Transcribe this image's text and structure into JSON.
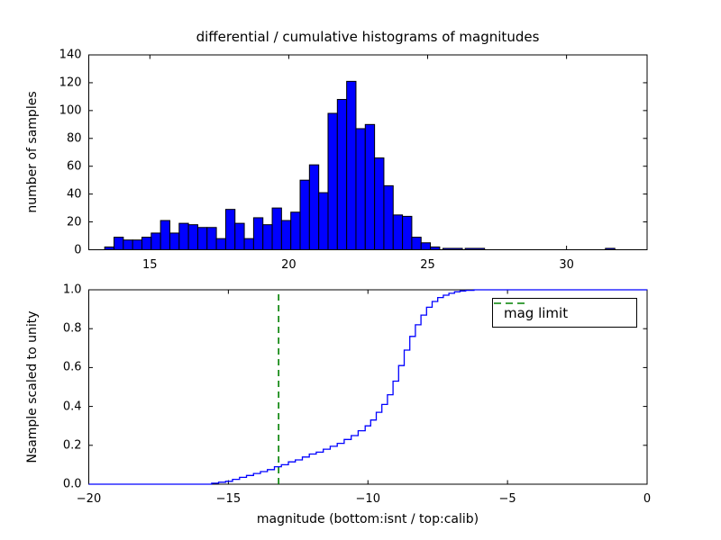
{
  "figure": {
    "background": "#ffffff",
    "title": "differential / cumulative histograms of magnitudes"
  },
  "chart_data": [
    {
      "type": "bar",
      "subtype": "differential-histogram",
      "title": "differential / cumulative histograms of magnitudes",
      "xlabel": "",
      "ylabel": "number of samples",
      "xlim": [
        12.8,
        32.9
      ],
      "ylim": [
        0,
        140
      ],
      "xticks": [
        15,
        20,
        25,
        30
      ],
      "xticklabels": [
        "15",
        "20",
        "25",
        "30"
      ],
      "yticks": [
        0,
        20,
        40,
        60,
        80,
        100,
        120,
        140
      ],
      "yticklabels": [
        "0",
        "20",
        "40",
        "60",
        "80",
        "100",
        "120",
        "140"
      ],
      "grid": false,
      "bar_color": "#0000ff",
      "bar_edge_color": "#000000",
      "bins": {
        "start": 13.374,
        "width": 0.335,
        "counts": [
          2,
          9,
          7,
          7,
          9,
          12,
          21,
          12,
          19,
          18,
          16,
          16,
          8,
          29,
          19,
          8,
          23,
          18,
          30,
          21,
          27,
          50,
          61,
          41,
          98,
          108,
          121,
          87,
          90,
          66,
          46,
          25,
          24,
          9,
          5,
          2
        ]
      },
      "extra_bars": [
        {
          "x0": 25.55,
          "x1": 26.25,
          "count": 1
        },
        {
          "x0": 26.35,
          "x1": 27.05,
          "count": 1
        },
        {
          "x0": 31.4,
          "x1": 31.74,
          "count": 1
        }
      ]
    },
    {
      "type": "line",
      "subtype": "cumulative-step-histogram",
      "xlabel": "magnitude (bottom:isnt / top:calib)",
      "ylabel": "Nsample scaled to unity",
      "xlim": [
        -20,
        0
      ],
      "ylim": [
        0.0,
        1.0
      ],
      "xticks": [
        -20,
        -15,
        -10,
        -5,
        0
      ],
      "xticklabels": [
        "−20",
        "−15",
        "−10",
        "−5",
        "0"
      ],
      "yticks": [
        0.0,
        0.2,
        0.4,
        0.6,
        0.8,
        1.0
      ],
      "yticklabels": [
        "0.0",
        "0.2",
        "0.4",
        "0.6",
        "0.8",
        "1.0"
      ],
      "grid": false,
      "line_color": "#0000ff",
      "steps": [
        [
          -20,
          0
        ],
        [
          -15.6,
          0.005
        ],
        [
          -15.35,
          0.01
        ],
        [
          -15.1,
          0.015
        ],
        [
          -14.85,
          0.025
        ],
        [
          -14.6,
          0.035
        ],
        [
          -14.35,
          0.045
        ],
        [
          -14.1,
          0.055
        ],
        [
          -13.85,
          0.065
        ],
        [
          -13.6,
          0.075
        ],
        [
          -13.35,
          0.09
        ],
        [
          -13.1,
          0.1
        ],
        [
          -12.85,
          0.115
        ],
        [
          -12.6,
          0.125
        ],
        [
          -12.35,
          0.14
        ],
        [
          -12.1,
          0.155
        ],
        [
          -11.85,
          0.165
        ],
        [
          -11.6,
          0.18
        ],
        [
          -11.35,
          0.195
        ],
        [
          -11.1,
          0.21
        ],
        [
          -10.85,
          0.23
        ],
        [
          -10.6,
          0.25
        ],
        [
          -10.35,
          0.275
        ],
        [
          -10.1,
          0.3
        ],
        [
          -9.9,
          0.33
        ],
        [
          -9.7,
          0.37
        ],
        [
          -9.5,
          0.41
        ],
        [
          -9.3,
          0.46
        ],
        [
          -9.1,
          0.53
        ],
        [
          -8.9,
          0.61
        ],
        [
          -8.7,
          0.69
        ],
        [
          -8.5,
          0.76
        ],
        [
          -8.3,
          0.82
        ],
        [
          -8.1,
          0.87
        ],
        [
          -7.9,
          0.91
        ],
        [
          -7.7,
          0.94
        ],
        [
          -7.5,
          0.96
        ],
        [
          -7.3,
          0.972
        ],
        [
          -7.1,
          0.982
        ],
        [
          -6.9,
          0.99
        ],
        [
          -6.7,
          0.994
        ],
        [
          -6.5,
          0.997
        ],
        [
          -6.2,
          1.0
        ],
        [
          0,
          1.0
        ]
      ],
      "vline": {
        "x": -13.2,
        "color": "#008000",
        "style": "dashed",
        "label": "mag limit"
      },
      "legend": {
        "position": "upper right",
        "entries": [
          {
            "label": "mag limit",
            "color": "#008000",
            "style": "dashed"
          }
        ]
      }
    }
  ]
}
